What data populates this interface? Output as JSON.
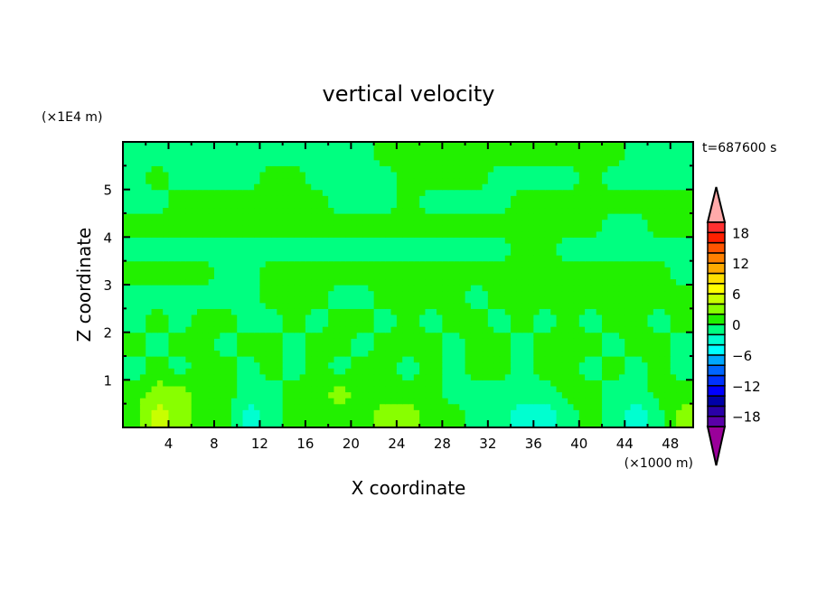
{
  "chart_data": {
    "type": "heatmap",
    "title": "vertical velocity",
    "xlabel": "X coordinate",
    "ylabel": "Z coordinate",
    "x_unit": "(×1000 m)",
    "y_unit": "(×1E4 m)",
    "time_label": "t=687600 s",
    "xlim": [
      0,
      50
    ],
    "ylim": [
      0,
      6
    ],
    "x_ticks": [
      4,
      8,
      12,
      16,
      20,
      24,
      28,
      32,
      36,
      40,
      44,
      48
    ],
    "y_ticks": [
      1,
      2,
      3,
      4,
      5
    ],
    "grid": false,
    "legend": "right",
    "colorbar": {
      "levels_min": -20,
      "levels_max": 20,
      "level_step": 2,
      "tick_labels": [
        "18",
        "12",
        "6",
        "0",
        "-6",
        "-12",
        "-18"
      ],
      "tick_values": [
        18,
        12,
        6,
        0,
        -6,
        -12,
        -18
      ],
      "colors": [
        "#5a00a8",
        "#2a00a8",
        "#0000a8",
        "#0000ff",
        "#0033ff",
        "#0066ff",
        "#00a8ff",
        "#00ffff",
        "#00ffd0",
        "#00ff80",
        "#22f000",
        "#88ff00",
        "#c8ff00",
        "#ffff00",
        "#ffe000",
        "#ffaa00",
        "#ff8000",
        "#ff5500",
        "#ff2000",
        "#ff3030"
      ],
      "under_color": "#9a009a",
      "over_color": "#ffaaaa"
    },
    "grid_x": [
      1,
      3,
      5,
      7,
      9,
      11,
      13,
      15,
      17,
      19,
      21,
      23,
      25,
      27,
      29,
      31,
      33,
      35,
      37,
      39,
      41,
      43,
      45,
      47,
      49
    ],
    "grid_z": [
      5.75,
      5.25,
      4.75,
      4.25,
      3.75,
      3.25,
      2.75,
      2.25,
      1.75,
      1.25,
      0.75,
      0.25
    ],
    "values": [
      [
        -1,
        -1,
        -1,
        -1,
        -1,
        -1,
        -1,
        -1,
        -1,
        -1,
        -1,
        1,
        1,
        1,
        1,
        1,
        1,
        1,
        1,
        1,
        1,
        1,
        -1,
        -1,
        -1
      ],
      [
        -1,
        1,
        -1,
        -1,
        -1,
        -1,
        1,
        1,
        -1,
        -1,
        -1,
        -1,
        1,
        1,
        1,
        1,
        -1,
        -1,
        -1,
        -1,
        1,
        -1,
        -1,
        -1,
        -1
      ],
      [
        -1,
        -1,
        1,
        1,
        1,
        1,
        1,
        1,
        1,
        -1,
        -1,
        -1,
        1,
        -1,
        -1,
        -1,
        -1,
        1,
        1,
        1,
        1,
        1,
        1,
        1,
        1
      ],
      [
        1,
        1,
        1,
        1,
        1,
        1,
        1,
        1,
        1,
        1,
        1,
        1,
        1,
        1,
        1,
        1,
        1,
        1,
        1,
        1,
        1,
        -1,
        -1,
        1,
        1
      ],
      [
        -1,
        -1,
        -1,
        -1,
        -1,
        -1,
        -1,
        -1,
        -1,
        -1,
        -1,
        -1,
        -1,
        -1,
        -1,
        -1,
        -1,
        1,
        1,
        -1,
        -1,
        -1,
        -1,
        -1,
        -1
      ],
      [
        1,
        1,
        1,
        1,
        -1,
        -1,
        1,
        1,
        1,
        1,
        1,
        1,
        1,
        1,
        1,
        1,
        1,
        1,
        1,
        1,
        1,
        1,
        1,
        1,
        -1
      ],
      [
        -1,
        -1,
        -1,
        -1,
        -1,
        -1,
        1,
        1,
        1,
        -1,
        -1,
        1,
        1,
        1,
        1,
        -1,
        1,
        1,
        1,
        1,
        1,
        1,
        1,
        1,
        1
      ],
      [
        -1,
        1,
        -1,
        1,
        1,
        -1,
        -1,
        1,
        -1,
        1,
        1,
        -1,
        1,
        -1,
        1,
        1,
        -1,
        1,
        -1,
        1,
        -1,
        1,
        1,
        -1,
        1
      ],
      [
        1,
        -1,
        1,
        1,
        -1,
        1,
        1,
        -1,
        1,
        1,
        -1,
        1,
        1,
        1,
        -1,
        1,
        1,
        -1,
        1,
        1,
        1,
        -1,
        1,
        1,
        -1
      ],
      [
        -1,
        1,
        -1,
        1,
        1,
        -1,
        1,
        -1,
        1,
        -1,
        1,
        1,
        -1,
        1,
        -1,
        1,
        1,
        -1,
        1,
        1,
        -1,
        1,
        -1,
        1,
        -1
      ],
      [
        1,
        3,
        3,
        1,
        1,
        -1,
        -1,
        1,
        1,
        3,
        1,
        1,
        1,
        1,
        -1,
        -1,
        -1,
        -1,
        -1,
        1,
        1,
        -1,
        -1,
        1,
        1
      ],
      [
        1,
        5,
        3,
        1,
        1,
        -3,
        -1,
        1,
        1,
        1,
        1,
        3,
        3,
        1,
        1,
        -1,
        -1,
        -3,
        -3,
        -1,
        1,
        -1,
        -3,
        -1,
        3
      ]
    ]
  }
}
